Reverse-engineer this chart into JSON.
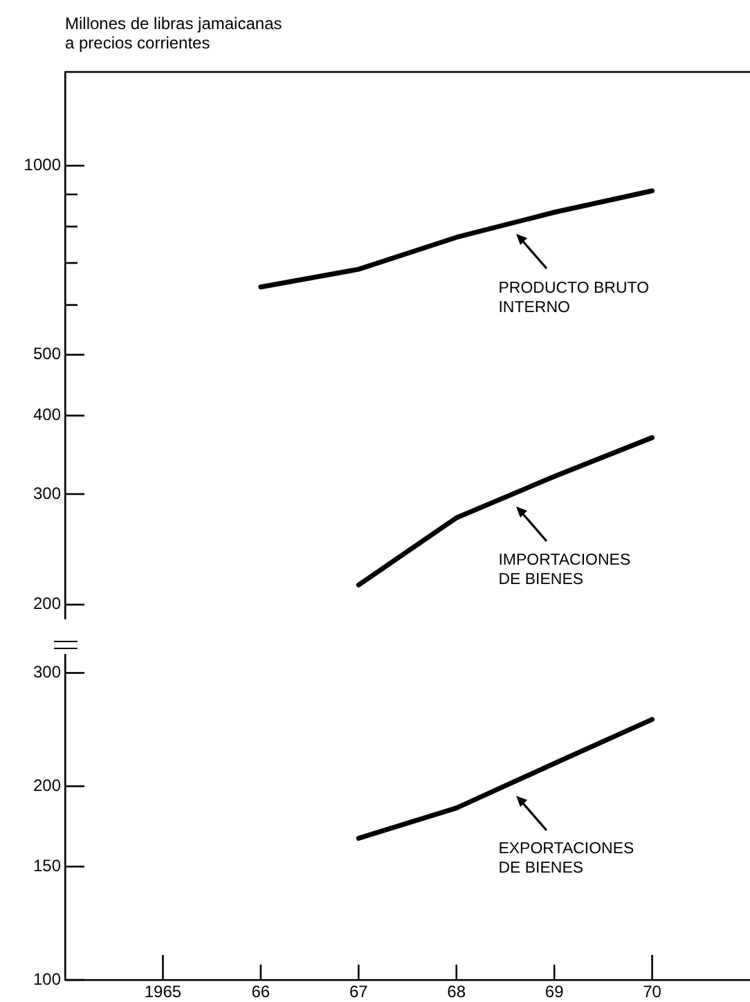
{
  "chart_data": [
    {
      "type": "line",
      "ylabel": "Millones de libras jamaicanas\na precios corrientes",
      "log": "y",
      "xlim": [
        1964,
        1971
      ],
      "ylim": [
        190,
        1410
      ],
      "yticks": [
        1000,
        {
          "value": 900,
          "label": null
        },
        {
          "value": 800,
          "label": null
        },
        {
          "value": 700,
          "label": null
        },
        {
          "value": 600,
          "label": null
        },
        500,
        400,
        300,
        200
      ],
      "tick_labels": "y",
      "grid": false,
      "legend": "right",
      "marker": "none",
      "series": [
        {
          "name": "PRODUCTO BRUTO INTERNO",
          "color": "#000000",
          "x": [
            1966,
            1967,
            1968,
            1969,
            1970
          ],
          "values": [
            641,
            684,
            769,
            843,
            912
          ]
        },
        {
          "name": "IMPORTACIONES DE BIENES",
          "color": "#000000",
          "x": [
            1967,
            1968,
            1969,
            1970
          ],
          "values": [
            215,
            275,
            320,
            369
          ]
        }
      ]
    },
    {
      "type": "line",
      "log": "y",
      "xlim": [
        1964,
        1971
      ],
      "xticks": [
        {
          "value": 1965,
          "label": "1965"
        },
        {
          "value": 1966,
          "label": "66"
        },
        {
          "value": 1967,
          "label": "67"
        },
        {
          "value": 1968,
          "label": "68"
        },
        {
          "value": 1969,
          "label": "69"
        },
        {
          "value": 1970,
          "label": "70"
        }
      ],
      "ylim": [
        100,
        320
      ],
      "yticks": [
        300,
        200,
        150,
        100
      ],
      "grid": false,
      "legend": "right",
      "marker": "none",
      "series": [
        {
          "name": "EXPORTACIONES DE BIENES",
          "color": "#000000",
          "x": [
            1967,
            1968,
            1969,
            1970
          ],
          "values": [
            166,
            185,
            217,
            254
          ]
        }
      ]
    }
  ]
}
